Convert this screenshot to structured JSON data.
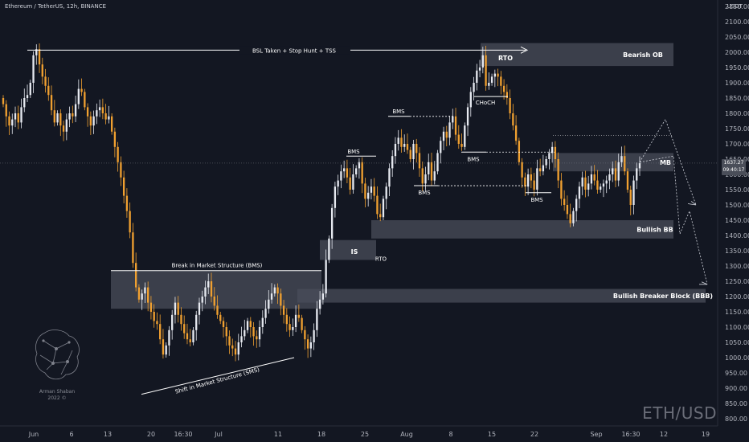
{
  "header": {
    "symbol_line": "Ethereum / TetherUS, 12h, BINANCE",
    "currency": "USDT"
  },
  "watermark": "ETH/USD",
  "logo": {
    "name": "Arman Shaban",
    "year": "2022 ©"
  },
  "price_tag": {
    "price": "1637.27",
    "countdown": "09:40:17"
  },
  "colors": {
    "background": "#131722",
    "bull_candle": "#e6e9f0",
    "bear_candle": "#f0a030",
    "zone_fill": "#4a4e59",
    "annotation": "#ffffff"
  },
  "chart_data": {
    "type": "candlestick",
    "timeframe": "12h",
    "ylim": [
      780,
      2150
    ],
    "y_ticks": [
      "2150.00",
      "2100.00",
      "2050.00",
      "2000.00",
      "1950.00",
      "1900.00",
      "1850.00",
      "1800.00",
      "1750.00",
      "1700.00",
      "1650.00",
      "1600.00",
      "1550.00",
      "1500.00",
      "1450.00",
      "1400.00",
      "1350.00",
      "1300.00",
      "1250.00",
      "1200.00",
      "1150.00",
      "1100.00",
      "1050.00",
      "1000.00",
      "950.00",
      "900.00",
      "850.00",
      "800.00"
    ],
    "x_ticks": [
      "Jun",
      "6",
      "13",
      "20",
      "16:30",
      "Jul",
      "11",
      "18",
      "25",
      "Aug",
      "8",
      "15",
      "22",
      "Sep",
      "16:30",
      "12",
      "19"
    ],
    "closes": [
      1830,
      1790,
      1760,
      1780,
      1800,
      1770,
      1820,
      1850,
      1860,
      1900,
      1990,
      2010,
      1960,
      1920,
      1890,
      1860,
      1810,
      1770,
      1800,
      1760,
      1740,
      1780,
      1800,
      1790,
      1830,
      1880,
      1870,
      1820,
      1790,
      1760,
      1790,
      1810,
      1820,
      1800,
      1780,
      1790,
      1740,
      1690,
      1640,
      1590,
      1530,
      1480,
      1410,
      1310,
      1230,
      1190,
      1210,
      1230,
      1180,
      1150,
      1120,
      1110,
      1060,
      1010,
      1040,
      1090,
      1140,
      1180,
      1140,
      1110,
      1080,
      1060,
      1050,
      1090,
      1140,
      1180,
      1200,
      1230,
      1250,
      1200,
      1170,
      1140,
      1120,
      1100,
      1070,
      1040,
      1030,
      1010,
      1050,
      1070,
      1090,
      1120,
      1100,
      1070,
      1060,
      1100,
      1130,
      1160,
      1190,
      1210,
      1230,
      1210,
      1170,
      1140,
      1110,
      1090,
      1100,
      1140,
      1130,
      1090,
      1060,
      1030,
      1050,
      1090,
      1160,
      1190,
      1210,
      1320,
      1390,
      1490,
      1560,
      1580,
      1610,
      1620,
      1590,
      1550,
      1600,
      1620,
      1640,
      1570,
      1520,
      1540,
      1560,
      1530,
      1470,
      1460,
      1520,
      1560,
      1620,
      1660,
      1700,
      1720,
      1690,
      1700,
      1680,
      1650,
      1700,
      1670,
      1620,
      1570,
      1600,
      1640,
      1580,
      1610,
      1670,
      1710,
      1740,
      1720,
      1770,
      1790,
      1730,
      1700,
      1690,
      1760,
      1820,
      1870,
      1900,
      1940,
      1950,
      1990,
      1890,
      1900,
      1920,
      1930,
      1920,
      1890,
      1870,
      1850,
      1800,
      1760,
      1710,
      1640,
      1590,
      1560,
      1600,
      1580,
      1550,
      1620,
      1610,
      1630,
      1650,
      1670,
      1690,
      1650,
      1580,
      1520,
      1500,
      1470,
      1440,
      1480,
      1520,
      1560,
      1590,
      1550,
      1570,
      1600,
      1580,
      1550,
      1560,
      1570,
      1580,
      1600,
      1620,
      1580,
      1640,
      1660,
      1610,
      1550,
      1500,
      1580,
      1620,
      1637
    ],
    "annotations": [
      {
        "id": "bsl",
        "label": "BSL Taken + Stop Hunt + TSS"
      },
      {
        "id": "bms_break",
        "label": "Break in Market Structure (BMS)"
      },
      {
        "id": "sms",
        "label": "Shift in Market Structure (SMS)"
      },
      {
        "id": "rto_top",
        "label": "RTO"
      },
      {
        "id": "choch",
        "label": "CHoCH"
      },
      {
        "id": "bms1",
        "label": "BMS"
      },
      {
        "id": "bms2",
        "label": "BMS"
      },
      {
        "id": "bms3",
        "label": "BMS"
      },
      {
        "id": "bms4",
        "label": "BMS"
      },
      {
        "id": "bms5",
        "label": "BMS"
      },
      {
        "id": "is",
        "label": "IS"
      },
      {
        "id": "rto_low",
        "label": "RTO"
      }
    ],
    "zones": [
      {
        "id": "bearish_ob",
        "label": "Bearish OB",
        "low": 1955,
        "high": 2030
      },
      {
        "id": "mb",
        "label": "MB",
        "low": 1610,
        "high": 1670
      },
      {
        "id": "bullish_bb",
        "label": "Bullish BB",
        "low": 1390,
        "high": 1450
      },
      {
        "id": "bbb",
        "label": "Bullish Breaker Block (BBB)",
        "low": 1180,
        "high": 1225
      },
      {
        "id": "bms_zone",
        "label": "",
        "low": 1160,
        "high": 1285
      },
      {
        "id": "is_zone",
        "label": "",
        "low": 1320,
        "high": 1385
      }
    ]
  }
}
